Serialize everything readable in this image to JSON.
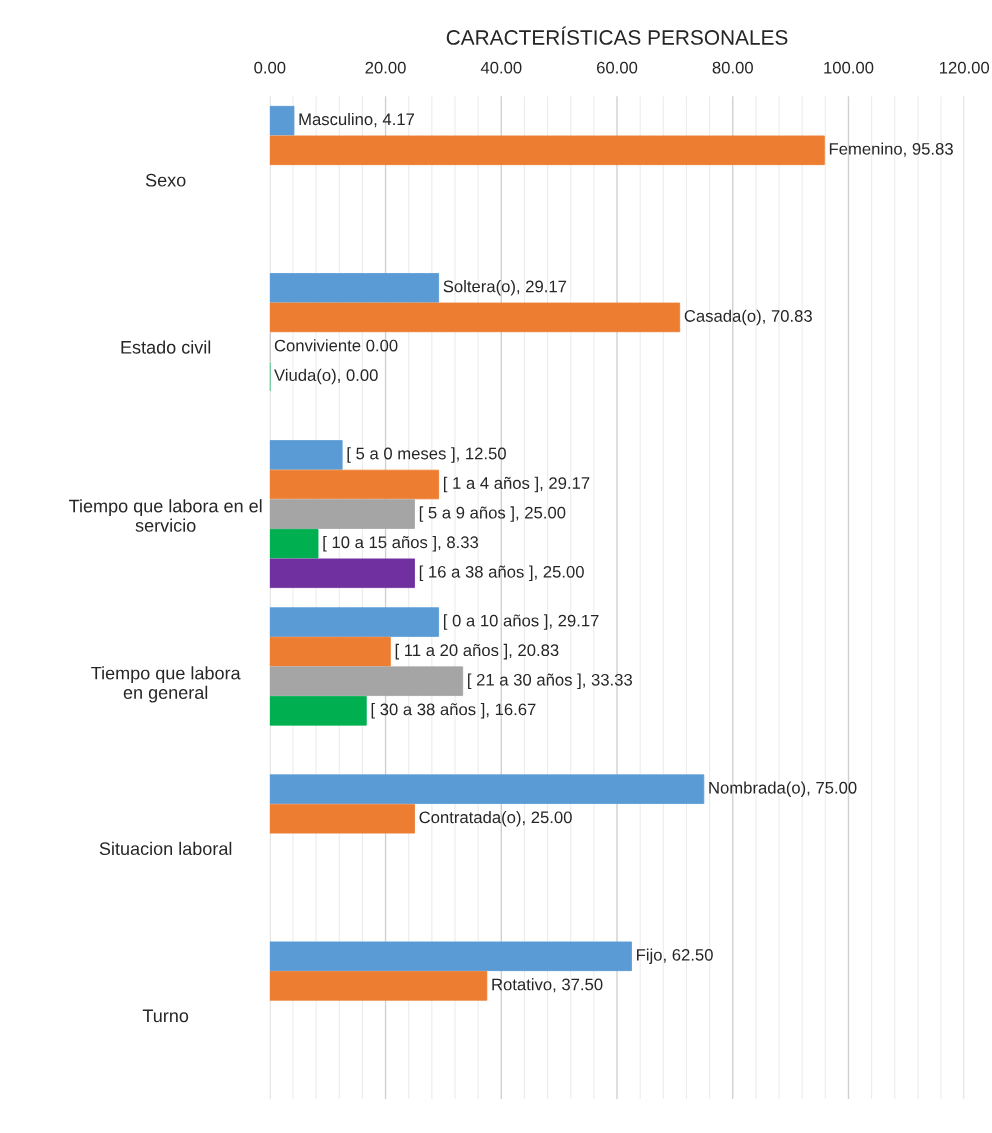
{
  "chart_data": {
    "type": "bar",
    "orientation": "horizontal",
    "title": "CARACTERÍSTICAS PERSONALES",
    "categories": [
      "Sexo",
      "Estado civil",
      "Tiempo que labora en el\nservicio",
      "Tiempo que labora\nen general",
      "Situacion laboral",
      "Turno"
    ],
    "series": [
      {
        "color": "#5b9bd5",
        "values": [
          4.17,
          29.17,
          12.5,
          29.17,
          75.0,
          62.5
        ],
        "value_labels": [
          "Masculino, 4.17",
          "Soltera(o), 29.17",
          "[ 5 a 0 meses ], 12.50",
          "[ 0 a 10 años ], 29.17",
          "Nombrada(o), 75.00",
          "Fijo, 62.50"
        ]
      },
      {
        "color": "#ed7d31",
        "values": [
          95.83,
          70.83,
          29.17,
          20.83,
          25.0,
          37.5
        ],
        "value_labels": [
          "Femenino, 95.83",
          "Casada(o), 70.83",
          "[ 1 a 4 años ], 29.17",
          "[ 11 a 20 años ], 20.83",
          "Contratada(o), 25.00",
          "Rotativo, 37.50"
        ]
      },
      {
        "color": "#a5a5a5",
        "values": [
          null,
          0.0,
          25.0,
          33.33,
          null,
          null
        ],
        "value_labels": [
          null,
          "Conviviente 0.00",
          "[ 5 a 9 años ], 25.00",
          "[ 21 a 30 años ], 33.33",
          null,
          null
        ]
      },
      {
        "color": "#00b050",
        "values": [
          null,
          0.0,
          8.33,
          16.67,
          null,
          null
        ],
        "value_labels": [
          null,
          "Viuda(o), 0.00",
          "[ 10 a 15 años ], 8.33",
          "[ 30 a 38 años ], 16.67",
          null,
          null
        ]
      },
      {
        "color": "#7030a0",
        "values": [
          null,
          null,
          25.0,
          null,
          null,
          null
        ],
        "value_labels": [
          null,
          null,
          "[ 16 a 38 años ], 25.00",
          null,
          null,
          null
        ]
      }
    ],
    "xlim": [
      0,
      120
    ],
    "xticks": [
      {
        "value": 0,
        "label": "0.00"
      },
      {
        "value": 20,
        "label": "20.00"
      },
      {
        "value": 40,
        "label": "40.00"
      },
      {
        "value": 60,
        "label": "60.00"
      },
      {
        "value": 80,
        "label": "80.00"
      },
      {
        "value": 100,
        "label": "100.00"
      },
      {
        "value": 120,
        "label": "120.00"
      }
    ],
    "grid": "x",
    "legend": false
  }
}
